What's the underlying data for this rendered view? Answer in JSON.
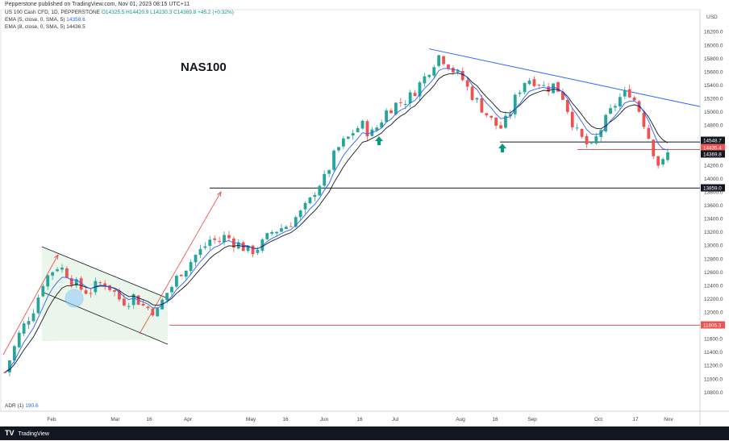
{
  "header": {
    "published": "Pepperstone published on TradingView.com, Nov 01, 2023 08:15 UTC+11",
    "symbol": "US 100 Cash CFD, 1D, PEPPERSTONE",
    "ohlc": "O14325.5 H14420.9 L14230.3 C14369.8 +45.2 (+0.32%)",
    "ema5_label": "EMA (5, close, 0, SMA, 5)",
    "ema5_value": "14358.6",
    "ema8_label": "EMA (8, close, 0, SMA, 5)",
    "ema8_value": "14436.5"
  },
  "currency": "USD",
  "annotation_title": "NAS100",
  "adr": {
    "label": "ADR (1)",
    "value": "190.6"
  },
  "footer": {
    "brand": "TradingView"
  },
  "colors": {
    "up": "#26a69a",
    "down": "#ef5350",
    "ema5": "#2962ff",
    "ema8": "#131722",
    "trendline": "#2962ff",
    "zone": "#e8f5e9",
    "arrow": "#089981"
  },
  "chart_data": {
    "type": "candlestick",
    "title": "NAS100",
    "ylabel": "USD",
    "ylim": [
      10700,
      16350
    ],
    "y_ticks": [
      "16200.0",
      "16000.0",
      "15800.0",
      "15600.0",
      "15400.0",
      "15200.0",
      "15000.0",
      "14800.0",
      "14600.0",
      "14400.0",
      "14200.0",
      "14000.0",
      "13800.0",
      "13600.0",
      "13400.0",
      "13200.0",
      "13000.0",
      "12800.0",
      "12600.0",
      "12400.0",
      "12200.0",
      "12000.0",
      "11800.0",
      "11600.0",
      "11400.0",
      "11200.0",
      "11000.0",
      "10800.0"
    ],
    "x_ticks": [
      "Feb",
      "Mar",
      "16",
      "Apr",
      "May",
      "16",
      "Jun",
      "16",
      "Jul",
      "Aug",
      "16",
      "Sep",
      "Oct",
      "17",
      "Nov"
    ],
    "price_labels": [
      {
        "value": "14548.7",
        "kind": "dark"
      },
      {
        "value": "14435.4",
        "kind": "red"
      },
      {
        "value": "14369.8",
        "kind": "dark"
      },
      {
        "value": "13859.0",
        "kind": "dark"
      },
      {
        "value": "11805.3",
        "kind": "red"
      }
    ],
    "levels": [
      {
        "name": "support",
        "value": 14548.7
      },
      {
        "name": "resistance",
        "value": 13859.0
      },
      {
        "name": "low",
        "value": 11805.3
      },
      {
        "name": "recent",
        "value": 14435.4
      }
    ],
    "trendline": {
      "from": {
        "x": "Jul 19",
        "y": 15945
      },
      "to": {
        "x": "Nov 01",
        "y": 15080
      }
    },
    "path": [
      11100,
      11400,
      11700,
      11900,
      12100,
      12450,
      12600,
      12700,
      12600,
      12450,
      12350,
      12300,
      12400,
      12450,
      12350,
      12200,
      12150,
      12250,
      12100,
      12050,
      12000,
      12250,
      12400,
      12600,
      12700,
      12850,
      12950,
      13100,
      13050,
      13150,
      13050,
      13000,
      12900,
      12950,
      13050,
      13200,
      13250,
      13300,
      13400,
      13500,
      13650,
      13900,
      14000,
      14300,
      14500,
      14600,
      14750,
      14800,
      14650,
      14800,
      15000,
      15100,
      15150,
      15200,
      15350,
      15500,
      15700,
      15850,
      15750,
      15600,
      15500,
      15300,
      15150,
      15000,
      14850,
      14750,
      14900,
      15200,
      15450,
      15500,
      15450,
      15350,
      15400,
      15300,
      15000,
      14700,
      14550,
      14450,
      14700,
      14900,
      15100,
      15250,
      15300,
      15100,
      14800,
      14450,
      14150,
      14370
    ]
  }
}
